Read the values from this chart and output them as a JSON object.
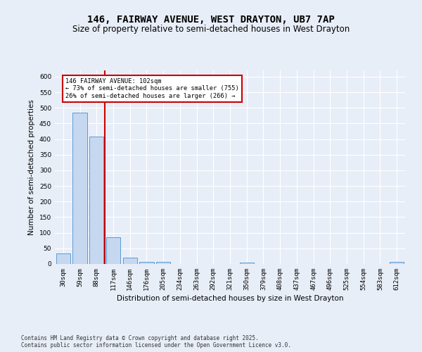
{
  "title_line1": "146, FAIRWAY AVENUE, WEST DRAYTON, UB7 7AP",
  "title_line2": "Size of property relative to semi-detached houses in West Drayton",
  "xlabel": "Distribution of semi-detached houses by size in West Drayton",
  "ylabel": "Number of semi-detached properties",
  "footnote": "Contains HM Land Registry data © Crown copyright and database right 2025.\nContains public sector information licensed under the Open Government Licence v3.0.",
  "categories": [
    "30sqm",
    "59sqm",
    "88sqm",
    "117sqm",
    "146sqm",
    "176sqm",
    "205sqm",
    "234sqm",
    "263sqm",
    "292sqm",
    "321sqm",
    "350sqm",
    "379sqm",
    "408sqm",
    "437sqm",
    "467sqm",
    "496sqm",
    "525sqm",
    "554sqm",
    "583sqm",
    "612sqm"
  ],
  "values": [
    33,
    485,
    408,
    85,
    20,
    7,
    7,
    0,
    0,
    0,
    0,
    5,
    0,
    0,
    0,
    0,
    0,
    0,
    0,
    0,
    6
  ],
  "bar_color": "#c5d8f0",
  "bar_edge_color": "#5b9bd5",
  "annotation_text": "146 FAIRWAY AVENUE: 102sqm\n← 73% of semi-detached houses are smaller (755)\n26% of semi-detached houses are larger (266) →",
  "annotation_box_color": "#ffffff",
  "annotation_box_edge": "#cc0000",
  "red_line_color": "#cc0000",
  "ylim": [
    0,
    620
  ],
  "yticks": [
    0,
    50,
    100,
    150,
    200,
    250,
    300,
    350,
    400,
    450,
    500,
    550,
    600
  ],
  "background_color": "#e8eef8",
  "plot_background": "#e8eef8",
  "title_fontsize": 10,
  "subtitle_fontsize": 8.5,
  "axis_label_fontsize": 7.5,
  "tick_fontsize": 6.5,
  "footnote_fontsize": 5.5
}
